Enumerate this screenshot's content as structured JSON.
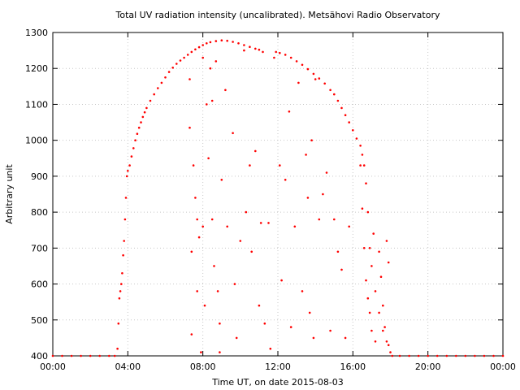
{
  "chart_data": {
    "type": "scatter",
    "title": "Total UV radiation intensity (uncalibrated). Metsähovi Radio Observatory",
    "xlabel": "Time UT, on date 2015-08-03",
    "ylabel": "Arbitrary unit",
    "xlim": [
      0,
      24
    ],
    "ylim": [
      400,
      1300
    ],
    "x_ticks": [
      {
        "value": 0,
        "label": "00:00"
      },
      {
        "value": 4,
        "label": "04:00"
      },
      {
        "value": 8,
        "label": "08:00"
      },
      {
        "value": 12,
        "label": "12:00"
      },
      {
        "value": 16,
        "label": "16:00"
      },
      {
        "value": 20,
        "label": "20:00"
      },
      {
        "value": 24,
        "label": "00:00"
      }
    ],
    "y_ticks": [
      400,
      500,
      600,
      700,
      800,
      900,
      1000,
      1100,
      1200,
      1300
    ],
    "grid": true,
    "marker_color": "#ff0000",
    "series": [
      {
        "points": [
          [
            0.0,
            400
          ],
          [
            0.5,
            400
          ],
          [
            1.0,
            400
          ],
          [
            1.5,
            400
          ],
          [
            2.0,
            400
          ],
          [
            2.5,
            400
          ],
          [
            3.0,
            400
          ],
          [
            3.3,
            400
          ],
          [
            3.45,
            420
          ],
          [
            3.5,
            490
          ],
          [
            3.55,
            560
          ],
          [
            3.6,
            580
          ],
          [
            3.65,
            600
          ],
          [
            3.7,
            630
          ],
          [
            3.75,
            680
          ],
          [
            3.8,
            720
          ],
          [
            3.85,
            780
          ],
          [
            3.9,
            840
          ],
          [
            3.95,
            900
          ],
          [
            4.0,
            915
          ],
          [
            4.1,
            930
          ],
          [
            4.2,
            955
          ],
          [
            4.3,
            978
          ],
          [
            4.4,
            1000
          ],
          [
            4.5,
            1018
          ],
          [
            4.6,
            1035
          ],
          [
            4.7,
            1050
          ],
          [
            4.8,
            1065
          ],
          [
            4.9,
            1078
          ],
          [
            5.0,
            1090
          ],
          [
            5.2,
            1110
          ],
          [
            5.4,
            1128
          ],
          [
            5.6,
            1145
          ],
          [
            5.8,
            1160
          ],
          [
            6.0,
            1175
          ],
          [
            6.2,
            1190
          ],
          [
            6.4,
            1202
          ],
          [
            6.6,
            1213
          ],
          [
            6.8,
            1222
          ],
          [
            7.0,
            1230
          ],
          [
            7.2,
            1238
          ],
          [
            7.4,
            1246
          ],
          [
            7.6,
            1253
          ],
          [
            7.8,
            1259
          ],
          [
            8.0,
            1265
          ],
          [
            8.2,
            1270
          ],
          [
            8.4,
            1273
          ],
          [
            8.7,
            1276
          ],
          [
            9.0,
            1278
          ],
          [
            9.3,
            1277
          ],
          [
            9.6,
            1274
          ],
          [
            9.9,
            1270
          ],
          [
            10.2,
            1265
          ],
          [
            10.5,
            1260
          ],
          [
            10.8,
            1255
          ],
          [
            11.0,
            1252
          ],
          [
            11.2,
            1246
          ],
          [
            11.9,
            1246
          ],
          [
            12.1,
            1243
          ],
          [
            12.4,
            1238
          ],
          [
            12.7,
            1230
          ],
          [
            13.0,
            1220
          ],
          [
            13.3,
            1210
          ],
          [
            13.6,
            1198
          ],
          [
            13.9,
            1185
          ],
          [
            14.2,
            1172
          ],
          [
            14.5,
            1158
          ],
          [
            14.8,
            1140
          ],
          [
            15.0,
            1128
          ],
          [
            15.2,
            1110
          ],
          [
            15.4,
            1090
          ],
          [
            15.6,
            1070
          ],
          [
            15.8,
            1050
          ],
          [
            16.0,
            1028
          ],
          [
            16.2,
            1005
          ],
          [
            16.4,
            985
          ],
          [
            16.5,
            960
          ],
          [
            16.6,
            930
          ],
          [
            16.7,
            880
          ],
          [
            16.8,
            800
          ],
          [
            16.9,
            700
          ],
          [
            17.0,
            650
          ],
          [
            17.2,
            580
          ],
          [
            17.4,
            520
          ],
          [
            17.6,
            470
          ],
          [
            17.8,
            440
          ],
          [
            18.0,
            410
          ],
          [
            18.1,
            400
          ],
          [
            18.5,
            400
          ],
          [
            19.0,
            400
          ],
          [
            19.5,
            400
          ],
          [
            20.0,
            400
          ],
          [
            20.5,
            400
          ],
          [
            21.0,
            400
          ],
          [
            21.5,
            400
          ],
          [
            22.0,
            400
          ],
          [
            22.5,
            400
          ],
          [
            23.0,
            400
          ],
          [
            23.5,
            400
          ],
          [
            24.0,
            400
          ],
          [
            7.3,
            1170
          ],
          [
            7.3,
            1035
          ],
          [
            7.4,
            690
          ],
          [
            7.4,
            460
          ],
          [
            7.5,
            930
          ],
          [
            7.6,
            840
          ],
          [
            7.7,
            780
          ],
          [
            7.7,
            580
          ],
          [
            7.8,
            730
          ],
          [
            7.9,
            410
          ],
          [
            8.0,
            1230
          ],
          [
            8.0,
            760
          ],
          [
            8.1,
            540
          ],
          [
            8.2,
            1100
          ],
          [
            8.3,
            950
          ],
          [
            8.4,
            1200
          ],
          [
            8.5,
            780
          ],
          [
            8.5,
            1110
          ],
          [
            8.6,
            650
          ],
          [
            8.7,
            1220
          ],
          [
            8.8,
            580
          ],
          [
            8.9,
            490
          ],
          [
            8.9,
            410
          ],
          [
            9.0,
            890
          ],
          [
            9.2,
            1140
          ],
          [
            9.3,
            760
          ],
          [
            9.6,
            1020
          ],
          [
            9.7,
            600
          ],
          [
            9.8,
            450
          ],
          [
            10.0,
            720
          ],
          [
            10.2,
            1250
          ],
          [
            10.3,
            800
          ],
          [
            10.5,
            930
          ],
          [
            10.6,
            690
          ],
          [
            10.8,
            970
          ],
          [
            11.0,
            540
          ],
          [
            11.1,
            770
          ],
          [
            11.3,
            490
          ],
          [
            11.5,
            770
          ],
          [
            11.6,
            420
          ],
          [
            11.8,
            1230
          ],
          [
            12.1,
            930
          ],
          [
            12.2,
            610
          ],
          [
            12.4,
            890
          ],
          [
            12.6,
            1080
          ],
          [
            12.7,
            480
          ],
          [
            12.9,
            760
          ],
          [
            13.1,
            1160
          ],
          [
            13.3,
            580
          ],
          [
            13.5,
            960
          ],
          [
            13.6,
            840
          ],
          [
            13.7,
            520
          ],
          [
            13.8,
            1000
          ],
          [
            13.9,
            450
          ],
          [
            14.0,
            1170
          ],
          [
            14.2,
            780
          ],
          [
            14.4,
            850
          ],
          [
            14.6,
            910
          ],
          [
            14.8,
            470
          ],
          [
            15.0,
            780
          ],
          [
            15.2,
            690
          ],
          [
            15.4,
            640
          ],
          [
            15.6,
            450
          ],
          [
            15.8,
            760
          ],
          [
            16.4,
            930
          ],
          [
            16.5,
            810
          ],
          [
            16.6,
            700
          ],
          [
            16.7,
            610
          ],
          [
            16.8,
            560
          ],
          [
            16.9,
            520
          ],
          [
            17.0,
            470
          ],
          [
            17.1,
            740
          ],
          [
            17.2,
            440
          ],
          [
            17.4,
            690
          ],
          [
            17.5,
            620
          ],
          [
            17.6,
            540
          ],
          [
            17.7,
            480
          ],
          [
            17.8,
            720
          ],
          [
            17.9,
            660
          ],
          [
            17.9,
            430
          ]
        ]
      }
    ]
  }
}
